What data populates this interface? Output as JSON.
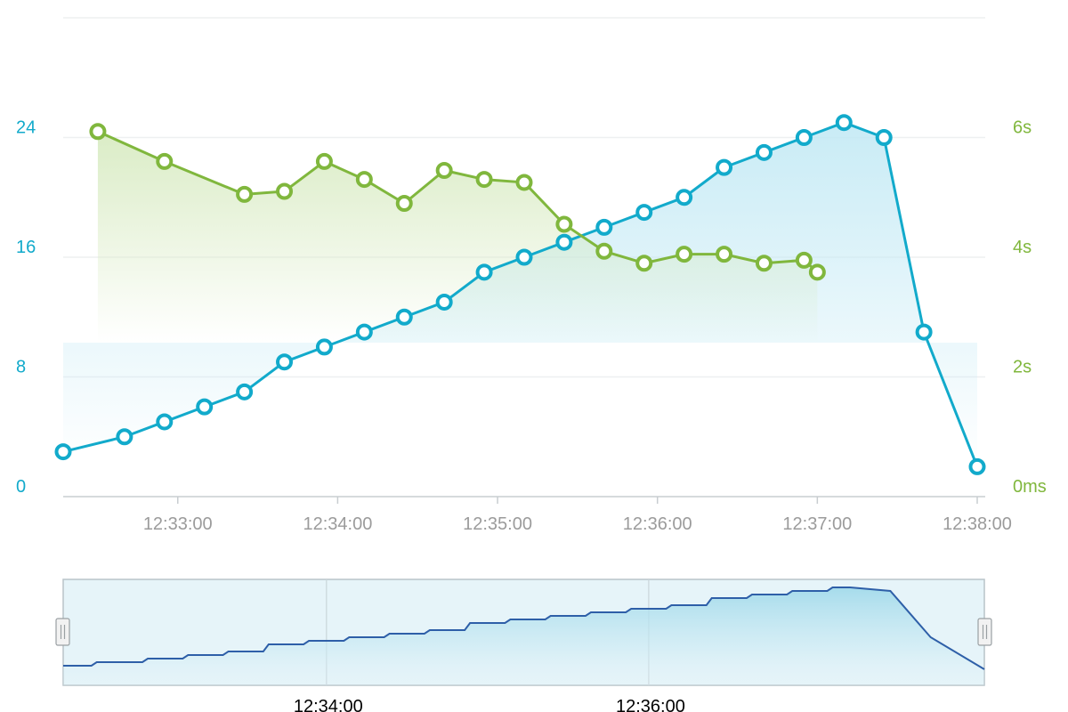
{
  "chart_data": {
    "type": "line",
    "title": "",
    "xlabel": "",
    "x_ticks": [
      "12:33:00",
      "12:34:00",
      "12:35:00",
      "12:36:00",
      "12:37:00",
      "12:38:00"
    ],
    "xlim": [
      "12:32:17",
      "12:38:00"
    ],
    "y_left": {
      "ticks": [
        "0",
        "8",
        "16",
        "24"
      ],
      "range": [
        0,
        32
      ],
      "color": "#12aacb"
    },
    "y_right": {
      "ticks": [
        "0ms",
        "2s",
        "4s",
        "6s"
      ],
      "range": [
        0,
        8
      ],
      "color": "#80b73d"
    },
    "grid": true,
    "series": [
      {
        "axis": "left",
        "color": "#12aacb",
        "fill": "#bfe8f4",
        "points": [
          [
            "12:32:17",
            3
          ],
          [
            "12:32:40",
            4
          ],
          [
            "12:32:55",
            5
          ],
          [
            "12:33:10",
            6
          ],
          [
            "12:33:25",
            7
          ],
          [
            "12:33:40",
            9
          ],
          [
            "12:33:55",
            10
          ],
          [
            "12:34:10",
            11
          ],
          [
            "12:34:25",
            12
          ],
          [
            "12:34:40",
            13
          ],
          [
            "12:34:55",
            15
          ],
          [
            "12:35:10",
            16
          ],
          [
            "12:35:25",
            17
          ],
          [
            "12:35:40",
            18
          ],
          [
            "12:35:55",
            19
          ],
          [
            "12:36:10",
            20
          ],
          [
            "12:36:25",
            22
          ],
          [
            "12:36:40",
            23
          ],
          [
            "12:36:55",
            24
          ],
          [
            "12:37:10",
            25
          ],
          [
            "12:37:25",
            24
          ],
          [
            "12:37:40",
            11
          ],
          [
            "12:38:00",
            2
          ]
        ]
      },
      {
        "axis": "right",
        "color": "#80b73d",
        "fill": "#d6eabf",
        "points": [
          [
            "12:32:30",
            6.1
          ],
          [
            "12:32:55",
            5.6
          ],
          [
            "12:33:25",
            5.05
          ],
          [
            "12:33:40",
            5.1
          ],
          [
            "12:33:55",
            5.6
          ],
          [
            "12:34:10",
            5.3
          ],
          [
            "12:34:25",
            4.9
          ],
          [
            "12:34:40",
            5.45
          ],
          [
            "12:34:55",
            5.3
          ],
          [
            "12:35:10",
            5.25
          ],
          [
            "12:35:25",
            4.55
          ],
          [
            "12:35:40",
            4.1
          ],
          [
            "12:35:55",
            3.9
          ],
          [
            "12:36:10",
            4.05
          ],
          [
            "12:36:25",
            4.05
          ],
          [
            "12:36:40",
            3.9
          ],
          [
            "12:36:55",
            3.95
          ],
          [
            "12:37:00",
            3.75
          ]
        ]
      }
    ],
    "navigator": {
      "x_ticks": [
        "12:34:00",
        "12:36:00"
      ],
      "color": "#2e5fa8"
    }
  }
}
